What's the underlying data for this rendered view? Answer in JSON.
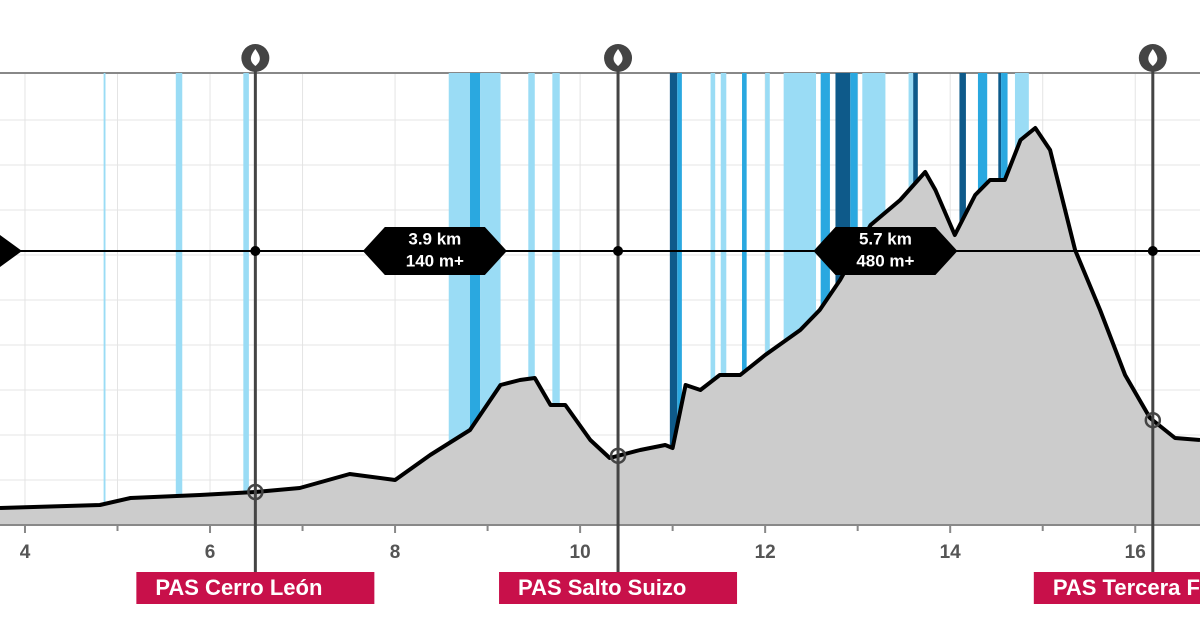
{
  "chart_data": {
    "type": "elevation-profile",
    "xlim": [
      3.73,
      16.7
    ],
    "ylim": [
      0,
      452
    ],
    "xticks": [
      4,
      6,
      8,
      10,
      12,
      14,
      16
    ],
    "minor_xticks": [
      5,
      7,
      9,
      11,
      13,
      15
    ],
    "yticks": [
      45,
      90,
      135,
      180,
      225,
      270,
      315,
      360,
      405
    ],
    "grid": true,
    "color": "#cccccc",
    "x": [
      3.73,
      4.81,
      5.14,
      5.89,
      6.49,
      6.97,
      7.51,
      8.0,
      8.38,
      8.81,
      9.14,
      9.35,
      9.51,
      9.68,
      9.84,
      10.11,
      10.32,
      10.65,
      10.92,
      11.0,
      11.14,
      11.3,
      11.51,
      11.73,
      12.0,
      12.38,
      12.59,
      12.81,
      13.14,
      13.46,
      13.73,
      13.84,
      14.05,
      14.27,
      14.43,
      14.59,
      14.76,
      14.92,
      15.08,
      15.35,
      15.62,
      15.89,
      16.16,
      16.43,
      16.7
    ],
    "values": [
      17,
      20,
      27,
      30,
      33,
      37,
      51,
      45,
      70,
      95,
      140,
      145,
      147,
      120,
      120,
      85,
      67,
      75,
      80,
      77,
      140,
      135,
      150,
      150,
      170,
      195,
      215,
      245,
      300,
      325,
      353,
      335,
      290,
      330,
      345,
      345,
      385,
      397,
      375,
      275,
      215,
      150,
      107,
      87,
      85
    ],
    "gradient_bands": [
      {
        "start": 4.85,
        "end": 4.87,
        "color": "#9adcf5"
      },
      {
        "start": 5.63,
        "end": 5.7,
        "color": "#9adcf5"
      },
      {
        "start": 6.36,
        "end": 6.42,
        "color": "#9adcf5"
      },
      {
        "start": 8.58,
        "end": 8.81,
        "color": "#9adcf5"
      },
      {
        "start": 8.81,
        "end": 8.92,
        "color": "#2aa8e0"
      },
      {
        "start": 8.92,
        "end": 9.14,
        "color": "#9adcf5"
      },
      {
        "start": 9.44,
        "end": 9.51,
        "color": "#9adcf5"
      },
      {
        "start": 9.7,
        "end": 9.78,
        "color": "#9adcf5"
      },
      {
        "start": 10.97,
        "end": 11.05,
        "color": "#0e5a8a"
      },
      {
        "start": 11.05,
        "end": 11.1,
        "color": "#2aa8e0"
      },
      {
        "start": 11.41,
        "end": 11.46,
        "color": "#9adcf5"
      },
      {
        "start": 11.52,
        "end": 11.58,
        "color": "#9adcf5"
      },
      {
        "start": 11.75,
        "end": 11.8,
        "color": "#2aa8e0"
      },
      {
        "start": 12.0,
        "end": 12.05,
        "color": "#9adcf5"
      },
      {
        "start": 12.2,
        "end": 12.55,
        "color": "#9adcf5"
      },
      {
        "start": 12.6,
        "end": 12.7,
        "color": "#2aa8e0"
      },
      {
        "start": 12.76,
        "end": 12.92,
        "color": "#0e5a8a"
      },
      {
        "start": 12.92,
        "end": 13.0,
        "color": "#2aa8e0"
      },
      {
        "start": 13.05,
        "end": 13.3,
        "color": "#9adcf5"
      },
      {
        "start": 13.55,
        "end": 13.6,
        "color": "#9adcf5"
      },
      {
        "start": 13.6,
        "end": 13.65,
        "color": "#0e5a8a"
      },
      {
        "start": 14.1,
        "end": 14.17,
        "color": "#0e5a8a"
      },
      {
        "start": 14.3,
        "end": 14.4,
        "color": "#2aa8e0"
      },
      {
        "start": 14.52,
        "end": 14.55,
        "color": "#0e5a8a"
      },
      {
        "start": 14.55,
        "end": 14.62,
        "color": "#2aa8e0"
      },
      {
        "start": 14.7,
        "end": 14.85,
        "color": "#9adcf5"
      }
    ],
    "waypoints": [
      {
        "km": 6.49,
        "label": "PAS Cerro León"
      },
      {
        "km": 10.41,
        "label": "PAS Salto Suizo"
      },
      {
        "km": 16.19,
        "label": "PAS Tercera Fr"
      }
    ],
    "segments": [
      {
        "km": 8.43,
        "distance": "3.9 km",
        "gain": "140 m+"
      },
      {
        "km": 13.3,
        "distance": "5.7 km",
        "gain": "480 m+"
      }
    ]
  }
}
